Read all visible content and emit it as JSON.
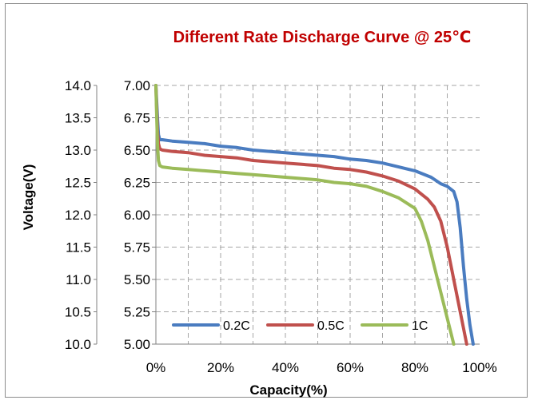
{
  "chart_data": {
    "type": "line",
    "title": "Different Rate Discharge Curve @ 25℃",
    "xlabel": "Capacity(%)",
    "ylabel": "Voltage(V)",
    "xlim": [
      0,
      100
    ],
    "ylim": [
      5.0,
      7.0
    ],
    "x_ticks": [
      "0%",
      "20%",
      "40%",
      "60%",
      "80%",
      "100%"
    ],
    "x_tick_values": [
      0,
      20,
      40,
      60,
      80,
      100
    ],
    "y_ticks_primary": [
      "5.00",
      "5.25",
      "5.50",
      "5.75",
      "6.00",
      "6.25",
      "6.50",
      "6.75",
      "7.00"
    ],
    "y_ticks_secondary": [
      "10.0",
      "10.5",
      "11.0",
      "11.5",
      "12.0",
      "12.5",
      "13.0",
      "13.5",
      "14.0"
    ],
    "y_tick_values": [
      5.0,
      5.25,
      5.5,
      5.75,
      6.0,
      6.25,
      6.5,
      6.75,
      7.0
    ],
    "grid": true,
    "legend_position": "bottom-left",
    "series": [
      {
        "name": "0.2C",
        "color": "#4a7cc0",
        "points": [
          [
            0,
            7.0
          ],
          [
            0.2,
            6.9
          ],
          [
            0.5,
            6.75
          ],
          [
            0.8,
            6.62
          ],
          [
            1.2,
            6.58
          ],
          [
            2,
            6.58
          ],
          [
            5,
            6.57
          ],
          [
            10,
            6.56
          ],
          [
            15,
            6.55
          ],
          [
            20,
            6.53
          ],
          [
            25,
            6.52
          ],
          [
            30,
            6.5
          ],
          [
            35,
            6.49
          ],
          [
            40,
            6.48
          ],
          [
            45,
            6.47
          ],
          [
            50,
            6.46
          ],
          [
            55,
            6.45
          ],
          [
            60,
            6.43
          ],
          [
            65,
            6.42
          ],
          [
            70,
            6.4
          ],
          [
            75,
            6.37
          ],
          [
            80,
            6.34
          ],
          [
            85,
            6.29
          ],
          [
            88,
            6.24
          ],
          [
            90,
            6.22
          ],
          [
            92,
            6.18
          ],
          [
            93,
            6.1
          ],
          [
            94,
            5.9
          ],
          [
            95,
            5.6
          ],
          [
            96,
            5.35
          ],
          [
            97,
            5.15
          ],
          [
            98,
            5.0
          ]
        ]
      },
      {
        "name": "0.5C",
        "color": "#c0504d",
        "points": [
          [
            0,
            7.0
          ],
          [
            0.2,
            6.85
          ],
          [
            0.5,
            6.65
          ],
          [
            0.8,
            6.55
          ],
          [
            1.2,
            6.51
          ],
          [
            2,
            6.5
          ],
          [
            5,
            6.49
          ],
          [
            10,
            6.48
          ],
          [
            15,
            6.46
          ],
          [
            20,
            6.45
          ],
          [
            25,
            6.44
          ],
          [
            30,
            6.42
          ],
          [
            35,
            6.41
          ],
          [
            40,
            6.4
          ],
          [
            45,
            6.39
          ],
          [
            50,
            6.38
          ],
          [
            55,
            6.36
          ],
          [
            60,
            6.35
          ],
          [
            65,
            6.33
          ],
          [
            70,
            6.3
          ],
          [
            75,
            6.26
          ],
          [
            80,
            6.2
          ],
          [
            84,
            6.12
          ],
          [
            86,
            6.06
          ],
          [
            88,
            5.95
          ],
          [
            90,
            5.75
          ],
          [
            92,
            5.5
          ],
          [
            94,
            5.25
          ],
          [
            96,
            5.0
          ]
        ]
      },
      {
        "name": "1C",
        "color": "#9bbb59",
        "points": [
          [
            0,
            7.0
          ],
          [
            0.2,
            6.8
          ],
          [
            0.5,
            6.55
          ],
          [
            0.8,
            6.42
          ],
          [
            1.2,
            6.38
          ],
          [
            2,
            6.37
          ],
          [
            5,
            6.36
          ],
          [
            10,
            6.35
          ],
          [
            15,
            6.34
          ],
          [
            20,
            6.33
          ],
          [
            25,
            6.32
          ],
          [
            30,
            6.31
          ],
          [
            35,
            6.3
          ],
          [
            40,
            6.29
          ],
          [
            45,
            6.28
          ],
          [
            50,
            6.27
          ],
          [
            55,
            6.25
          ],
          [
            60,
            6.24
          ],
          [
            65,
            6.22
          ],
          [
            70,
            6.18
          ],
          [
            75,
            6.13
          ],
          [
            80,
            6.05
          ],
          [
            82,
            5.95
          ],
          [
            84,
            5.8
          ],
          [
            86,
            5.6
          ],
          [
            88,
            5.4
          ],
          [
            90,
            5.2
          ],
          [
            92,
            5.0
          ]
        ]
      }
    ]
  }
}
